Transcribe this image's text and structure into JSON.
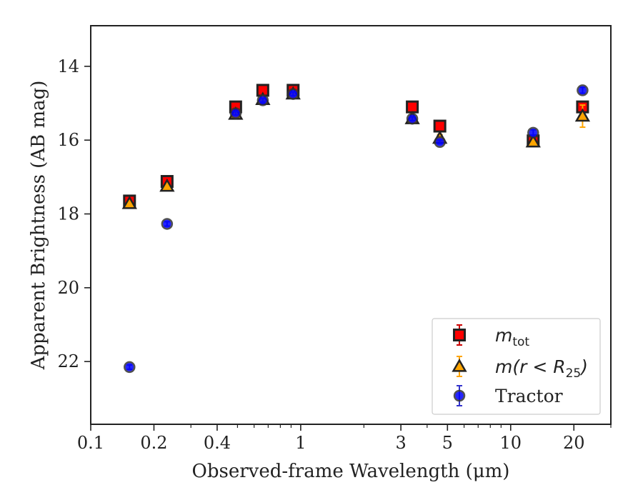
{
  "chart_data": {
    "type": "scatter",
    "xlabel": "Observed-frame Wavelength (μm)",
    "ylabel": "Apparent Brightness (AB mag)",
    "x_scale": "log",
    "xlim": [
      0.1,
      30
    ],
    "ylim": [
      23.7,
      12.9
    ],
    "y_inverted": true,
    "x_ticks": [
      {
        "value": 0.1,
        "label": "0.1"
      },
      {
        "value": 0.2,
        "label": "0.2"
      },
      {
        "value": 0.4,
        "label": "0.4"
      },
      {
        "value": 1,
        "label": "1"
      },
      {
        "value": 3,
        "label": "3"
      },
      {
        "value": 5,
        "label": "5"
      },
      {
        "value": 10,
        "label": "10"
      },
      {
        "value": 20,
        "label": "20"
      }
    ],
    "y_ticks": [
      {
        "value": 14,
        "label": "14"
      },
      {
        "value": 16,
        "label": "16"
      },
      {
        "value": 18,
        "label": "18"
      },
      {
        "value": 20,
        "label": "20"
      },
      {
        "value": 22,
        "label": "22"
      }
    ],
    "grid": false,
    "legend_position": "lower-right",
    "legend": [
      {
        "base": "m",
        "sub": "tot",
        "italic": "",
        "suffix": ""
      },
      {
        "base": "m(r < R",
        "sub": "25",
        "italic": "",
        "suffix": ")"
      },
      {
        "base": "Tractor",
        "sub": "",
        "italic": "",
        "suffix": ""
      }
    ],
    "series": [
      {
        "key": "mtot",
        "marker": "square",
        "color": "#ff0000",
        "edge_color": "#222222",
        "err_color": "#cc0000",
        "points": [
          {
            "x": 0.153,
            "y": 17.65,
            "err": 0.08
          },
          {
            "x": 0.231,
            "y": 17.12,
            "err": 0.06
          },
          {
            "x": 0.49,
            "y": 15.1,
            "err": 0.05
          },
          {
            "x": 0.66,
            "y": 14.65,
            "err": 0.05
          },
          {
            "x": 0.92,
            "y": 14.65,
            "err": 0.05
          },
          {
            "x": 3.4,
            "y": 15.1,
            "err": 0.05
          },
          {
            "x": 4.6,
            "y": 15.62,
            "err": 0.05
          },
          {
            "x": 12.8,
            "y": 16.02,
            "err": 0.05
          },
          {
            "x": 22.0,
            "y": 15.1,
            "err": 0.05
          }
        ]
      },
      {
        "key": "mr25",
        "marker": "triangle",
        "color": "#ffa500",
        "edge_color": "#222222",
        "err_color": "#ffa500",
        "points": [
          {
            "x": 0.153,
            "y": 17.72,
            "err": 0.05
          },
          {
            "x": 0.231,
            "y": 17.25,
            "err": 0.05
          },
          {
            "x": 0.49,
            "y": 15.3,
            "err": 0.05
          },
          {
            "x": 0.66,
            "y": 14.9,
            "err": 0.05
          },
          {
            "x": 0.92,
            "y": 14.75,
            "err": 0.05
          },
          {
            "x": 3.4,
            "y": 15.42,
            "err": 0.05
          },
          {
            "x": 4.6,
            "y": 15.95,
            "err": 0.1
          },
          {
            "x": 12.8,
            "y": 16.05,
            "err": 0.05
          },
          {
            "x": 22.0,
            "y": 15.35,
            "err": 0.3
          }
        ]
      },
      {
        "key": "tractor",
        "marker": "circle",
        "color": "#0000ff",
        "edge_color": "#333333",
        "err_color": "#3333cc",
        "points": [
          {
            "x": 0.153,
            "y": 22.15,
            "err": 0.06
          },
          {
            "x": 0.231,
            "y": 18.27,
            "err": 0.06
          },
          {
            "x": 0.49,
            "y": 15.27,
            "err": 0.05
          },
          {
            "x": 0.66,
            "y": 14.92,
            "err": 0.05
          },
          {
            "x": 0.92,
            "y": 14.75,
            "err": 0.05
          },
          {
            "x": 3.4,
            "y": 15.42,
            "err": 0.05
          },
          {
            "x": 4.6,
            "y": 16.05,
            "err": 0.05
          },
          {
            "x": 12.8,
            "y": 15.8,
            "err": 0.08
          },
          {
            "x": 22.0,
            "y": 14.65,
            "err": 0.08
          }
        ]
      }
    ]
  }
}
